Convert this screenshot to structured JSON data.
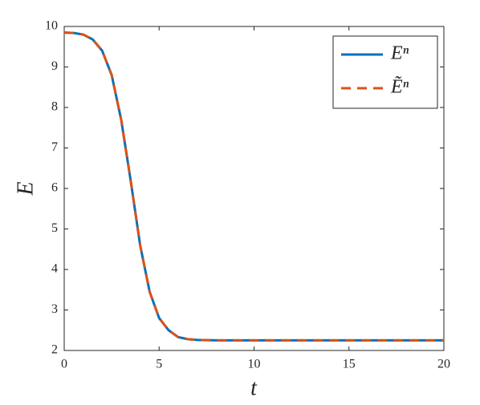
{
  "chart_data": {
    "type": "line",
    "x_label": "t",
    "y_label": "E",
    "x": [
      0,
      0.5,
      1,
      1.5,
      2,
      2.5,
      3,
      3.5,
      4,
      4.5,
      5,
      5.5,
      6,
      6.5,
      7,
      8,
      10,
      12,
      14,
      16,
      18,
      20
    ],
    "series": [
      {
        "name": "Eⁿ",
        "color": "#0072bd",
        "style": "solid",
        "values": [
          9.85,
          9.84,
          9.8,
          9.68,
          9.4,
          8.8,
          7.7,
          6.2,
          4.6,
          3.45,
          2.8,
          2.5,
          2.33,
          2.28,
          2.26,
          2.25,
          2.25,
          2.25,
          2.25,
          2.25,
          2.25,
          2.25
        ]
      },
      {
        "name": "Ẽⁿ",
        "color": "#d95319",
        "style": "dashed",
        "values": [
          9.85,
          9.84,
          9.8,
          9.68,
          9.4,
          8.8,
          7.7,
          6.2,
          4.6,
          3.45,
          2.8,
          2.5,
          2.33,
          2.28,
          2.26,
          2.25,
          2.25,
          2.25,
          2.25,
          2.25,
          2.25,
          2.25
        ]
      }
    ],
    "xlim": [
      0,
      20
    ],
    "xticks": [
      0,
      5,
      10,
      15,
      20
    ],
    "ylim": [
      2,
      10
    ],
    "yticks": [
      2,
      3,
      4,
      5,
      6,
      7,
      8,
      9,
      10
    ],
    "legend": "northeast"
  }
}
